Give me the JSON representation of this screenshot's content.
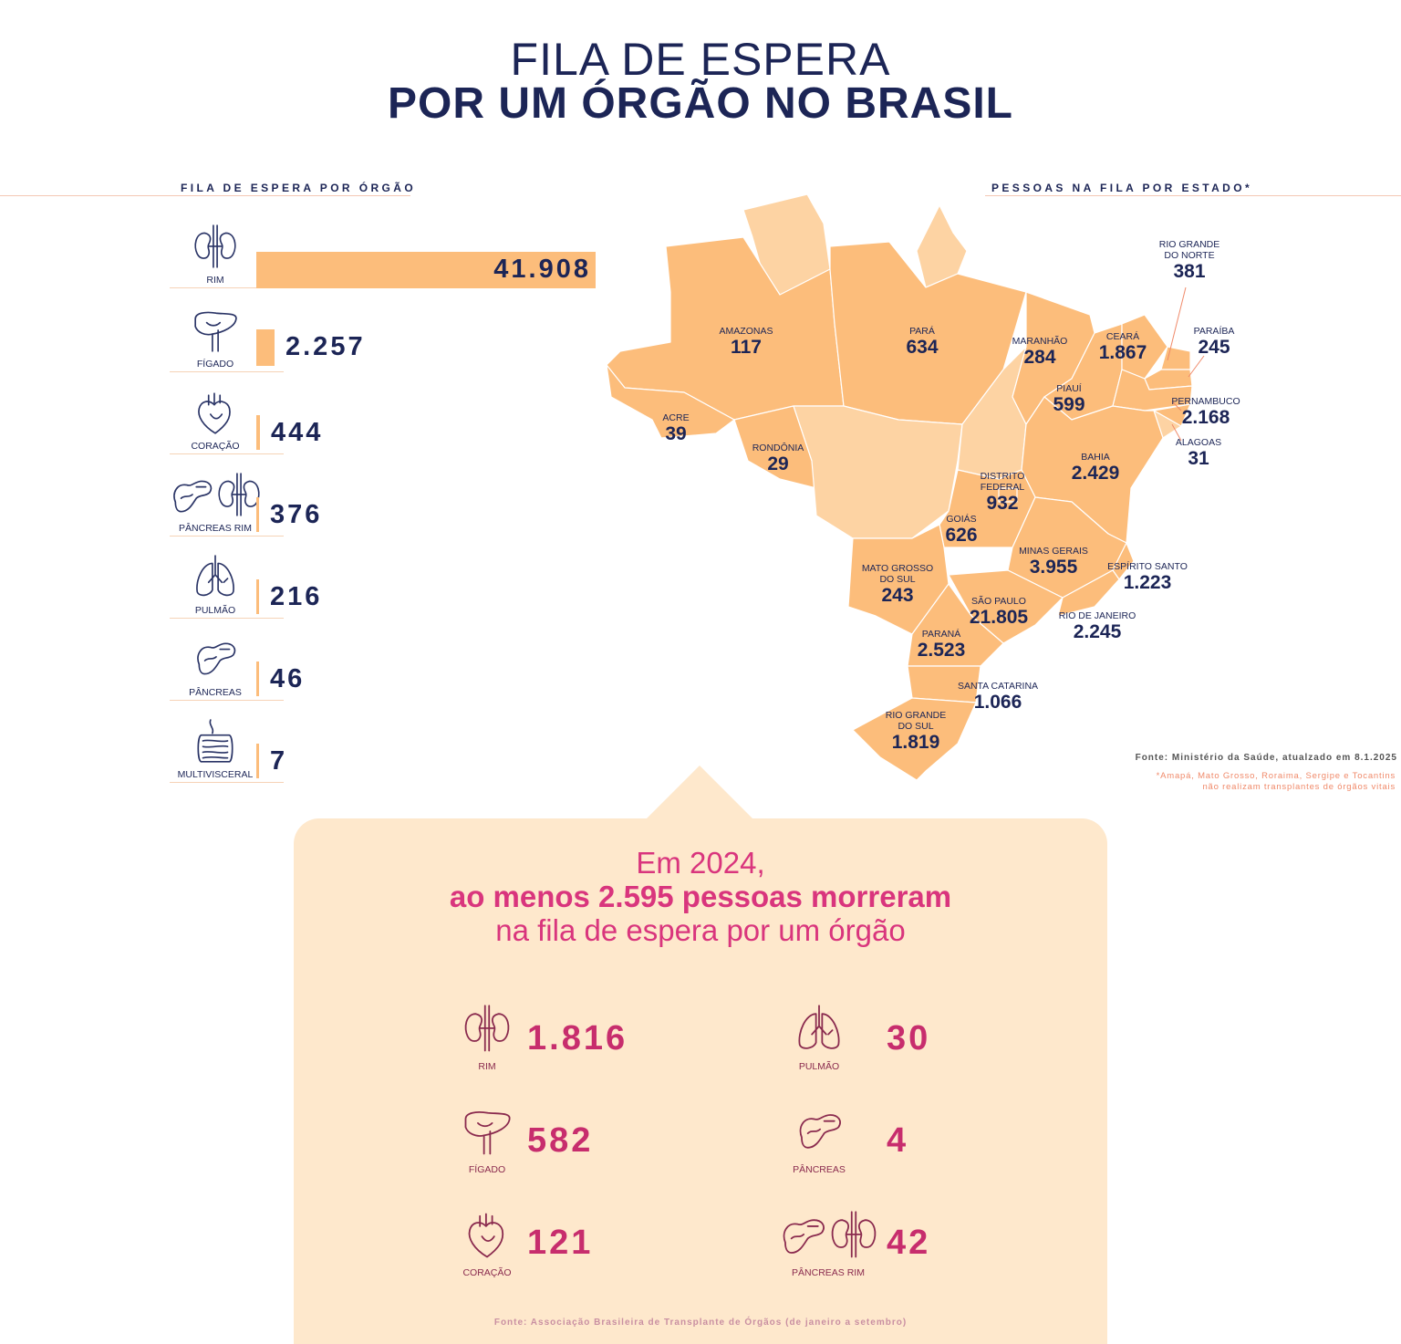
{
  "title": {
    "line1": "FILA DE ESPERA",
    "line2": "POR UM ÓRGÃO NO BRASIL"
  },
  "chart_data": [
    {
      "type": "bar",
      "title": "FILA DE ESPERA POR ÓRGÃO",
      "orientation": "horizontal",
      "categories": [
        "RIM",
        "FÍGADO",
        "CORAÇÃO",
        "PÂNCREAS RIM",
        "PULMÃO",
        "PÂNCREAS",
        "MULTIVISCERAL"
      ],
      "values": [
        41908,
        2257,
        444,
        376,
        216,
        46,
        7
      ],
      "value_labels": [
        "41.908",
        "2.257",
        "444",
        "376",
        "216",
        "46",
        "7"
      ],
      "icons": [
        "kidney-icon",
        "liver-icon",
        "heart-icon",
        "pancreas-kidney-icon",
        "lungs-icon",
        "pancreas-icon",
        "intestine-icon"
      ],
      "bar_color": "#fcbd7b",
      "xlim": [
        0,
        41908
      ]
    },
    {
      "type": "map",
      "title": "PESSOAS NA FILA POR ESTADO*",
      "states": [
        {
          "name": "AMAZONAS",
          "value": "117"
        },
        {
          "name": "PARÁ",
          "value": "634"
        },
        {
          "name": "MARANHÃO",
          "value": "284"
        },
        {
          "name": "CEARÁ",
          "value": "1.867"
        },
        {
          "name": "RIO GRANDE DO NORTE",
          "value": "381"
        },
        {
          "name": "PARAÍBA",
          "value": "245"
        },
        {
          "name": "PIAUÍ",
          "value": "599"
        },
        {
          "name": "PERNAMBUCO",
          "value": "2.168"
        },
        {
          "name": "ALAGOAS",
          "value": "31"
        },
        {
          "name": "ACRE",
          "value": "39"
        },
        {
          "name": "RONDÔNIA",
          "value": "29"
        },
        {
          "name": "BAHIA",
          "value": "2.429"
        },
        {
          "name": "DISTRITO FEDERAL",
          "value": "932"
        },
        {
          "name": "GOIÁS",
          "value": "626"
        },
        {
          "name": "MINAS GERAIS",
          "value": "3.955"
        },
        {
          "name": "ESPÍRITO SANTO",
          "value": "1.223"
        },
        {
          "name": "MATO GROSSO DO SUL",
          "value": "243"
        },
        {
          "name": "SÃO PAULO",
          "value": "21.805"
        },
        {
          "name": "RIO DE JANEIRO",
          "value": "2.245"
        },
        {
          "name": "PARANÁ",
          "value": "2.523"
        },
        {
          "name": "SANTA CATARINA",
          "value": "1.066"
        },
        {
          "name": "RIO GRANDE DO SUL",
          "value": "1.819"
        }
      ],
      "fill_color": "#fcbd7b",
      "fill_color_light": "#fdd3a3"
    },
    {
      "type": "table",
      "title": "ao menos 2.595 pessoas morreram",
      "categories": [
        "RIM",
        "FÍGADO",
        "CORAÇÃO",
        "PULMÃO",
        "PÂNCREAS",
        "PÂNCREAS RIM"
      ],
      "values": [
        1816,
        582,
        121,
        30,
        4,
        42
      ],
      "value_labels": [
        "1.816",
        "582",
        "121",
        "30",
        "4",
        "42"
      ],
      "icons": [
        "kidney-icon",
        "liver-icon",
        "heart-icon",
        "lungs-icon",
        "pancreas-icon",
        "pancreas-kidney-icon"
      ]
    }
  ],
  "map_source": "Fonte: Ministério da Saúde, atualzado em 8.1.2025",
  "map_note_line1": "*Amapá, Mato Grosso, Roraima, Sergipe e Tocantins",
  "map_note_line2": "não realizam transplantes de órgãos vitais",
  "panel": {
    "line1": "Em 2024,",
    "line2": "ao menos 2.595 pessoas morreram",
    "line3": "na fila de espera por um órgão",
    "source": "Fonte: Associação Brasileira de Transplante de Órgãos (de janeiro a setembro)"
  },
  "colors": {
    "navy": "#1c2556",
    "bar": "#fcbd7b",
    "panel_bg": "#fee8cc",
    "magenta": "#d9357d"
  }
}
